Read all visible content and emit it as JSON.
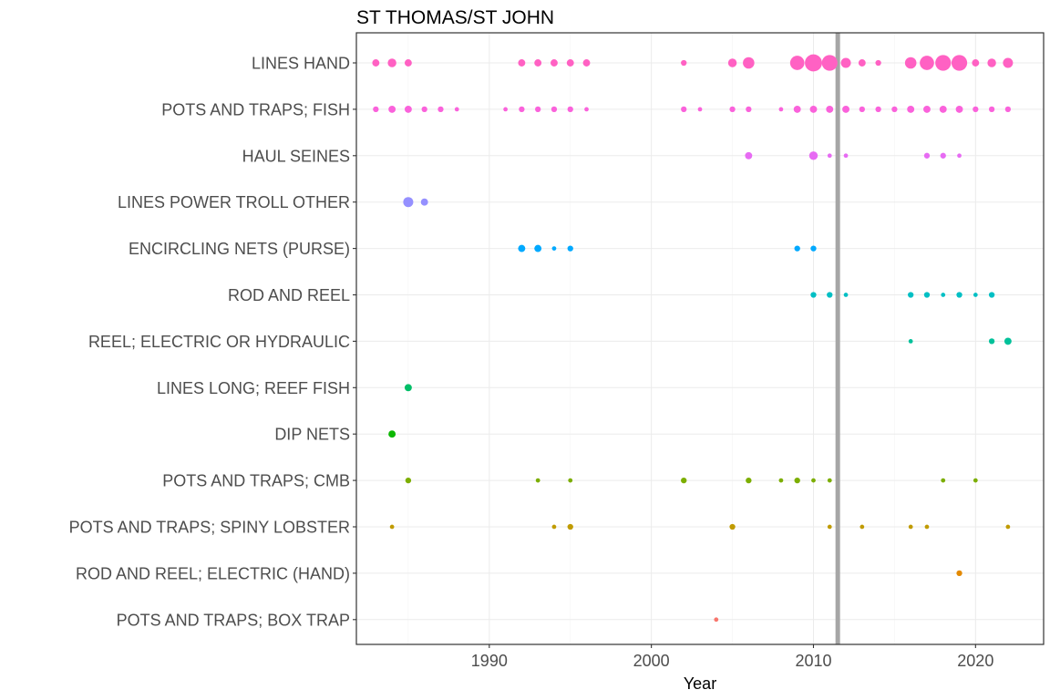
{
  "chart_data": {
    "type": "scatter",
    "title": "ST THOMAS/ST JOHN",
    "xlabel": "Year",
    "ylabel": "",
    "xlim": [
      1981.8,
      2024.2
    ],
    "xticks": [
      1990,
      2000,
      2010,
      2020
    ],
    "grid": true,
    "legend": "none",
    "reference_line": {
      "x": 2011.5,
      "color": "#a6a6a6"
    },
    "categories": [
      "LINES HAND",
      "POTS AND TRAPS; FISH",
      "HAUL SEINES",
      "LINES POWER TROLL OTHER",
      "ENCIRCLING NETS (PURSE)",
      "ROD AND REEL",
      "REEL; ELECTRIC OR HYDRAULIC",
      "LINES LONG; REEF FISH",
      "DIP NETS",
      "POTS AND TRAPS; CMB",
      "POTS AND TRAPS; SPINY LOBSTER",
      "ROD AND REEL; ELECTRIC (HAND)",
      "POTS AND TRAPS; BOX TRAP"
    ],
    "series": [
      {
        "category": "LINES HAND",
        "color": "#ff61c3",
        "points": [
          [
            1983,
            3
          ],
          [
            1984,
            4
          ],
          [
            1985,
            3
          ],
          [
            1992,
            3
          ],
          [
            1993,
            3
          ],
          [
            1994,
            3
          ],
          [
            1995,
            3
          ],
          [
            1996,
            3
          ],
          [
            2002,
            2
          ],
          [
            2005,
            4
          ],
          [
            2006,
            6
          ],
          [
            2009,
            8
          ],
          [
            2010,
            10
          ],
          [
            2011,
            9
          ],
          [
            2012,
            5
          ],
          [
            2013,
            3
          ],
          [
            2014,
            2
          ],
          [
            2016,
            6
          ],
          [
            2017,
            8
          ],
          [
            2018,
            9
          ],
          [
            2019,
            9
          ],
          [
            2020,
            3
          ],
          [
            2021,
            4
          ],
          [
            2022,
            5
          ]
        ]
      },
      {
        "category": "POTS AND TRAPS; FISH",
        "color": "#fa62db",
        "points": [
          [
            1983,
            2
          ],
          [
            1984,
            3
          ],
          [
            1985,
            3
          ],
          [
            1986,
            2
          ],
          [
            1987,
            2
          ],
          [
            1988,
            1
          ],
          [
            1991,
            1
          ],
          [
            1992,
            2
          ],
          [
            1993,
            2
          ],
          [
            1994,
            2
          ],
          [
            1995,
            2
          ],
          [
            1996,
            1
          ],
          [
            2002,
            2
          ],
          [
            2003,
            1
          ],
          [
            2005,
            2
          ],
          [
            2006,
            2
          ],
          [
            2008,
            1
          ],
          [
            2009,
            3
          ],
          [
            2010,
            3
          ],
          [
            2011,
            3
          ],
          [
            2012,
            3
          ],
          [
            2013,
            2
          ],
          [
            2014,
            2
          ],
          [
            2015,
            2
          ],
          [
            2016,
            3
          ],
          [
            2017,
            3
          ],
          [
            2018,
            3
          ],
          [
            2019,
            3
          ],
          [
            2020,
            2
          ],
          [
            2021,
            2
          ],
          [
            2022,
            2
          ]
        ]
      },
      {
        "category": "HAUL SEINES",
        "color": "#e76bf3",
        "points": [
          [
            2006,
            3
          ],
          [
            2010,
            4
          ],
          [
            2011,
            1
          ],
          [
            2012,
            1
          ],
          [
            2017,
            2
          ],
          [
            2018,
            2
          ],
          [
            2019,
            1
          ]
        ]
      },
      {
        "category": "LINES POWER TROLL OTHER",
        "color": "#9590ff",
        "points": [
          [
            1985,
            5
          ],
          [
            1986,
            3
          ]
        ]
      },
      {
        "category": "ENCIRCLING NETS (PURSE)",
        "color": "#00a9ff",
        "points": [
          [
            1992,
            3
          ],
          [
            1993,
            3
          ],
          [
            1994,
            1
          ],
          [
            1995,
            2
          ],
          [
            2009,
            2
          ],
          [
            2010,
            2
          ]
        ]
      },
      {
        "category": "ROD AND REEL",
        "color": "#00bfc4",
        "points": [
          [
            2010,
            2
          ],
          [
            2011,
            2
          ],
          [
            2012,
            1
          ],
          [
            2016,
            2
          ],
          [
            2017,
            2
          ],
          [
            2018,
            1
          ],
          [
            2019,
            2
          ],
          [
            2020,
            1
          ],
          [
            2021,
            2
          ]
        ]
      },
      {
        "category": "REEL; ELECTRIC OR HYDRAULIC",
        "color": "#00c19a",
        "points": [
          [
            2016,
            1
          ],
          [
            2021,
            2
          ],
          [
            2022,
            3
          ]
        ]
      },
      {
        "category": "LINES LONG; REEF FISH",
        "color": "#00be67",
        "points": [
          [
            1985,
            3
          ]
        ]
      },
      {
        "category": "DIP NETS",
        "color": "#0cb702",
        "points": [
          [
            1984,
            3
          ]
        ]
      },
      {
        "category": "POTS AND TRAPS; CMB",
        "color": "#7cae00",
        "points": [
          [
            1985,
            2
          ],
          [
            1993,
            1
          ],
          [
            1995,
            1
          ],
          [
            2002,
            2
          ],
          [
            2006,
            2
          ],
          [
            2008,
            1
          ],
          [
            2009,
            2
          ],
          [
            2010,
            1
          ],
          [
            2011,
            1
          ],
          [
            2018,
            1
          ],
          [
            2020,
            1
          ]
        ]
      },
      {
        "category": "POTS AND TRAPS; SPINY LOBSTER",
        "color": "#c09b00",
        "points": [
          [
            1984,
            1
          ],
          [
            1994,
            1
          ],
          [
            1995,
            2
          ],
          [
            2005,
            2
          ],
          [
            2011,
            1
          ],
          [
            2013,
            1
          ],
          [
            2016,
            1
          ],
          [
            2017,
            1
          ],
          [
            2022,
            1
          ]
        ]
      },
      {
        "category": "ROD AND REEL; ELECTRIC (HAND)",
        "color": "#e38900",
        "points": [
          [
            2019,
            2
          ]
        ]
      },
      {
        "category": "POTS AND TRAPS; BOX TRAP",
        "color": "#f8766d",
        "points": [
          [
            2004,
            1
          ]
        ]
      }
    ]
  }
}
